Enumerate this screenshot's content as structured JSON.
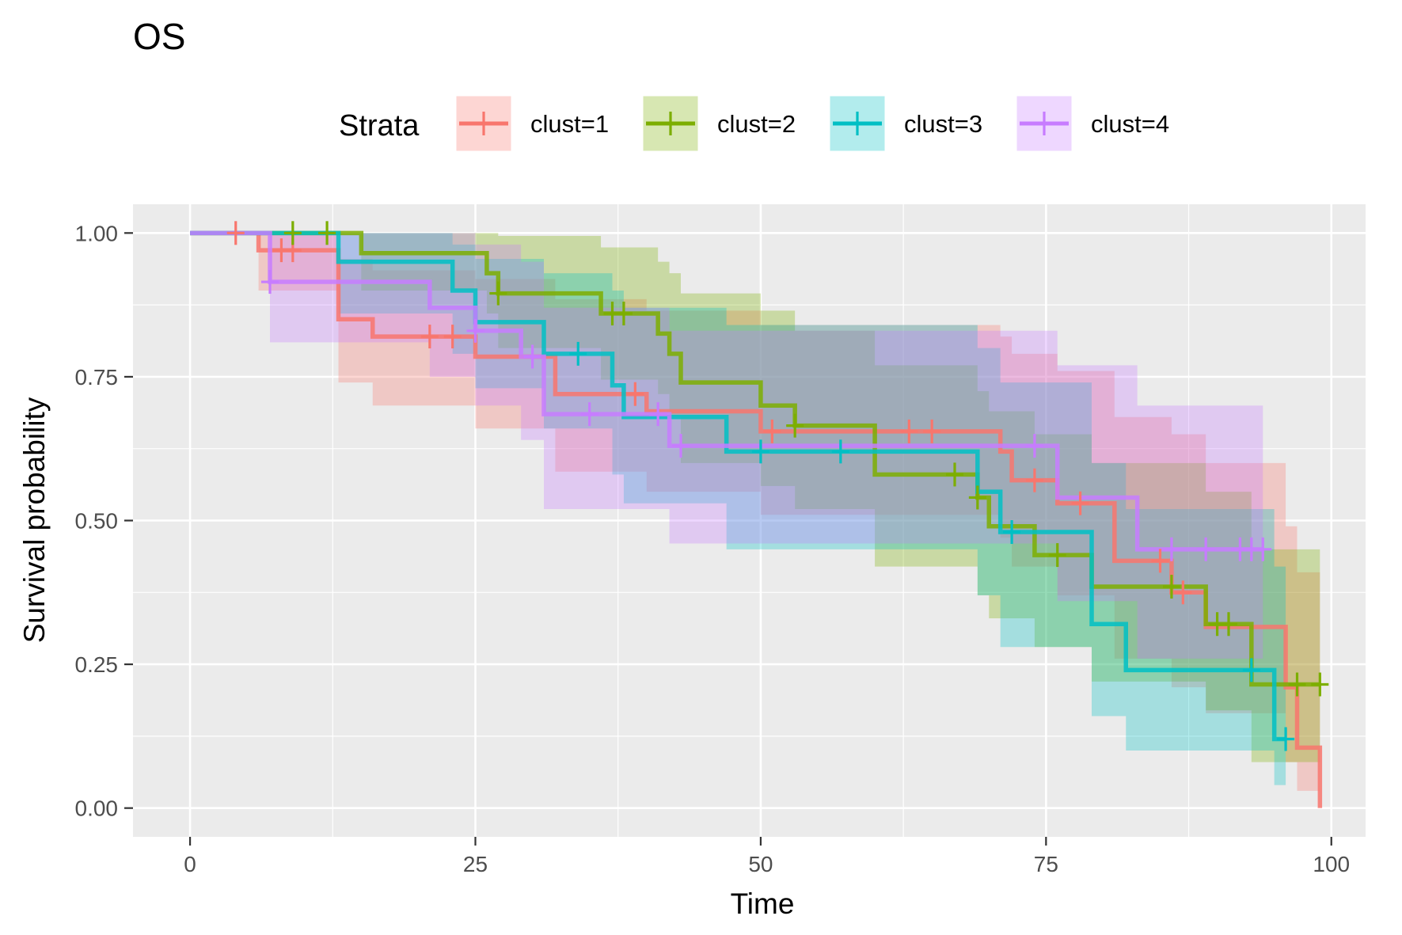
{
  "chart_data": {
    "type": "line",
    "subtype": "kaplan-meier-step",
    "title": "OS",
    "xlabel": "Time",
    "ylabel": "Survival probability",
    "xlim": [
      -5,
      103
    ],
    "ylim": [
      -0.05,
      1.05
    ],
    "x_ticks": [
      0,
      25,
      50,
      75,
      100
    ],
    "x_tick_labels": [
      "0",
      "25",
      "50",
      "75",
      "100"
    ],
    "y_ticks": [
      0,
      0.25,
      0.5,
      0.75,
      1
    ],
    "y_tick_labels": [
      "0.00",
      "0.25",
      "0.50",
      "0.75",
      "1.00"
    ],
    "grid": true,
    "legend": {
      "position": "top",
      "title": "Strata",
      "labels": [
        "clust=1",
        "clust=2",
        "clust=3",
        "clust=4"
      ]
    },
    "series": [
      {
        "name": "clust=1",
        "color": "#F8766D",
        "steps": [
          [
            0,
            1.0
          ],
          [
            6,
            0.97
          ],
          [
            13,
            0.85
          ],
          [
            16,
            0.82
          ],
          [
            25,
            0.785
          ],
          [
            32,
            0.72
          ],
          [
            40,
            0.69
          ],
          [
            50,
            0.655
          ],
          [
            71,
            0.62
          ],
          [
            72,
            0.57
          ],
          [
            76,
            0.53
          ],
          [
            81,
            0.43
          ],
          [
            86,
            0.375
          ],
          [
            89,
            0.315
          ],
          [
            96,
            0.21
          ],
          [
            97,
            0.105
          ],
          [
            99,
            0.0
          ]
        ],
        "end_x": 99,
        "censored_x": [
          4,
          8,
          9,
          21,
          23,
          39,
          51,
          63,
          65,
          74,
          78,
          85,
          87
        ],
        "ci_upper": [
          [
            0,
            1.0
          ],
          [
            6,
            1.0
          ],
          [
            13,
            0.955
          ],
          [
            16,
            0.935
          ],
          [
            25,
            0.92
          ],
          [
            32,
            0.885
          ],
          [
            40,
            0.865
          ],
          [
            50,
            0.84
          ],
          [
            71,
            0.82
          ],
          [
            72,
            0.79
          ],
          [
            76,
            0.76
          ],
          [
            81,
            0.68
          ],
          [
            86,
            0.65
          ],
          [
            89,
            0.6
          ],
          [
            96,
            0.49
          ],
          [
            97,
            0.41
          ],
          [
            99,
            0.41
          ]
        ],
        "ci_lower": [
          [
            0,
            1.0
          ],
          [
            6,
            0.9
          ],
          [
            13,
            0.74
          ],
          [
            16,
            0.7
          ],
          [
            25,
            0.66
          ],
          [
            32,
            0.585
          ],
          [
            40,
            0.55
          ],
          [
            50,
            0.51
          ],
          [
            71,
            0.47
          ],
          [
            72,
            0.42
          ],
          [
            76,
            0.37
          ],
          [
            81,
            0.26
          ],
          [
            86,
            0.21
          ],
          [
            89,
            0.165
          ],
          [
            96,
            0.08
          ],
          [
            97,
            0.03
          ],
          [
            99,
            0.03
          ]
        ]
      },
      {
        "name": "clust=2",
        "color": "#7CAE00",
        "steps": [
          [
            0,
            1.0
          ],
          [
            15,
            0.965
          ],
          [
            26,
            0.93
          ],
          [
            27,
            0.895
          ],
          [
            36,
            0.86
          ],
          [
            41,
            0.825
          ],
          [
            42,
            0.79
          ],
          [
            43,
            0.74
          ],
          [
            50,
            0.7
          ],
          [
            53,
            0.665
          ],
          [
            60,
            0.58
          ],
          [
            69,
            0.54
          ],
          [
            70,
            0.49
          ],
          [
            74,
            0.44
          ],
          [
            79,
            0.385
          ],
          [
            89,
            0.32
          ],
          [
            93,
            0.215
          ]
        ],
        "end_x": 99,
        "censored_x": [
          9,
          12,
          27,
          37,
          38,
          53,
          67,
          69,
          76,
          86,
          90,
          91,
          97,
          99
        ],
        "ci_upper": [
          [
            0,
            1.0
          ],
          [
            15,
            1.0
          ],
          [
            26,
            1.0
          ],
          [
            27,
            0.995
          ],
          [
            36,
            0.975
          ],
          [
            41,
            0.95
          ],
          [
            42,
            0.93
          ],
          [
            43,
            0.895
          ],
          [
            50,
            0.865
          ],
          [
            53,
            0.83
          ],
          [
            60,
            0.77
          ],
          [
            69,
            0.725
          ],
          [
            70,
            0.69
          ],
          [
            74,
            0.65
          ],
          [
            79,
            0.6
          ],
          [
            89,
            0.55
          ],
          [
            93,
            0.45
          ]
        ],
        "ci_lower": [
          [
            0,
            1.0
          ],
          [
            15,
            0.9
          ],
          [
            26,
            0.86
          ],
          [
            27,
            0.8
          ],
          [
            36,
            0.745
          ],
          [
            41,
            0.72
          ],
          [
            42,
            0.68
          ],
          [
            43,
            0.6
          ],
          [
            50,
            0.56
          ],
          [
            53,
            0.52
          ],
          [
            60,
            0.42
          ],
          [
            69,
            0.37
          ],
          [
            70,
            0.33
          ],
          [
            74,
            0.28
          ],
          [
            79,
            0.22
          ],
          [
            89,
            0.17
          ],
          [
            93,
            0.08
          ]
        ]
      },
      {
        "name": "clust=3",
        "color": "#00BFC4",
        "steps": [
          [
            0,
            1.0
          ],
          [
            13,
            0.95
          ],
          [
            23,
            0.9
          ],
          [
            25,
            0.845
          ],
          [
            31,
            0.79
          ],
          [
            37,
            0.735
          ],
          [
            38,
            0.68
          ],
          [
            47,
            0.62
          ],
          [
            69,
            0.55
          ],
          [
            71,
            0.48
          ],
          [
            79,
            0.32
          ],
          [
            82,
            0.24
          ],
          [
            95,
            0.12
          ]
        ],
        "end_x": 96,
        "censored_x": [
          34,
          50,
          57,
          72,
          93,
          96
        ],
        "ci_upper": [
          [
            0,
            1.0
          ],
          [
            13,
            1.0
          ],
          [
            23,
            0.98
          ],
          [
            25,
            0.955
          ],
          [
            31,
            0.93
          ],
          [
            37,
            0.9
          ],
          [
            38,
            0.87
          ],
          [
            47,
            0.84
          ],
          [
            69,
            0.8
          ],
          [
            71,
            0.74
          ],
          [
            79,
            0.6
          ],
          [
            82,
            0.52
          ],
          [
            95,
            0.42
          ]
        ],
        "ci_lower": [
          [
            0,
            1.0
          ],
          [
            13,
            0.86
          ],
          [
            23,
            0.79
          ],
          [
            25,
            0.73
          ],
          [
            31,
            0.66
          ],
          [
            37,
            0.58
          ],
          [
            38,
            0.53
          ],
          [
            47,
            0.45
          ],
          [
            69,
            0.37
          ],
          [
            71,
            0.28
          ],
          [
            79,
            0.16
          ],
          [
            82,
            0.1
          ],
          [
            95,
            0.04
          ]
        ]
      },
      {
        "name": "clust=4",
        "color": "#C77CFF",
        "steps": [
          [
            0,
            1.0
          ],
          [
            7,
            0.915
          ],
          [
            21,
            0.87
          ],
          [
            25,
            0.83
          ],
          [
            29,
            0.785
          ],
          [
            31,
            0.685
          ],
          [
            42,
            0.63
          ],
          [
            76,
            0.54
          ],
          [
            83,
            0.45
          ]
        ],
        "end_x": 94,
        "censored_x": [
          7,
          25,
          30,
          35,
          41,
          43,
          74,
          86,
          89,
          92,
          93,
          94
        ],
        "ci_upper": [
          [
            0,
            1.0
          ],
          [
            7,
            1.0
          ],
          [
            21,
            1.0
          ],
          [
            25,
            0.98
          ],
          [
            29,
            0.95
          ],
          [
            31,
            0.87
          ],
          [
            42,
            0.83
          ],
          [
            76,
            0.77
          ],
          [
            83,
            0.7
          ]
        ],
        "ci_lower": [
          [
            0,
            1.0
          ],
          [
            7,
            0.81
          ],
          [
            21,
            0.75
          ],
          [
            25,
            0.7
          ],
          [
            29,
            0.64
          ],
          [
            31,
            0.52
          ],
          [
            42,
            0.46
          ],
          [
            76,
            0.36
          ],
          [
            83,
            0.26
          ]
        ]
      }
    ]
  }
}
